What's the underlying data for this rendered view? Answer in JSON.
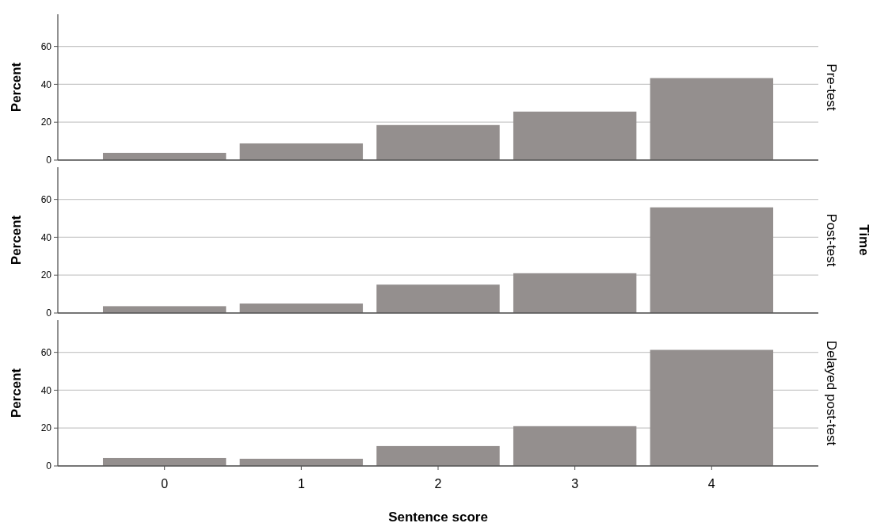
{
  "chart_data": [
    {
      "type": "bar",
      "title": "Pre-test",
      "ylabel": "Percent",
      "categories": [
        null,
        null,
        null,
        null,
        null
      ],
      "values": [
        3.8,
        8.8,
        18.5,
        25.6,
        43.3
      ],
      "color": "#948f8e",
      "ylim": [
        0,
        77
      ],
      "yticks": [
        0,
        20,
        40,
        60
      ],
      "grid": "y",
      "tick_labels": "y"
    },
    {
      "type": "bar",
      "title": "Post-test",
      "ylabel": "Percent",
      "categories": [
        null,
        null,
        null,
        null,
        null
      ],
      "values": [
        3.6,
        5.0,
        15.0,
        21.0,
        55.8
      ],
      "color": "#948f8e",
      "ylim": [
        0,
        77
      ],
      "yticks": [
        0,
        20,
        40,
        60
      ],
      "grid": "y",
      "tick_labels": "y",
      "annotations": [
        "Time"
      ]
    },
    {
      "type": "bar",
      "title": "Delayed post-test",
      "ylabel": "Percent",
      "xlabel": "Sentence score",
      "categories": [
        "0",
        "1",
        "2",
        "3",
        "4"
      ],
      "values": [
        4.2,
        3.8,
        10.5,
        21.0,
        61.3
      ],
      "color": "#948f8e",
      "ylim": [
        0,
        77
      ],
      "yticks": [
        0,
        20,
        40,
        60
      ],
      "grid": "y"
    }
  ]
}
